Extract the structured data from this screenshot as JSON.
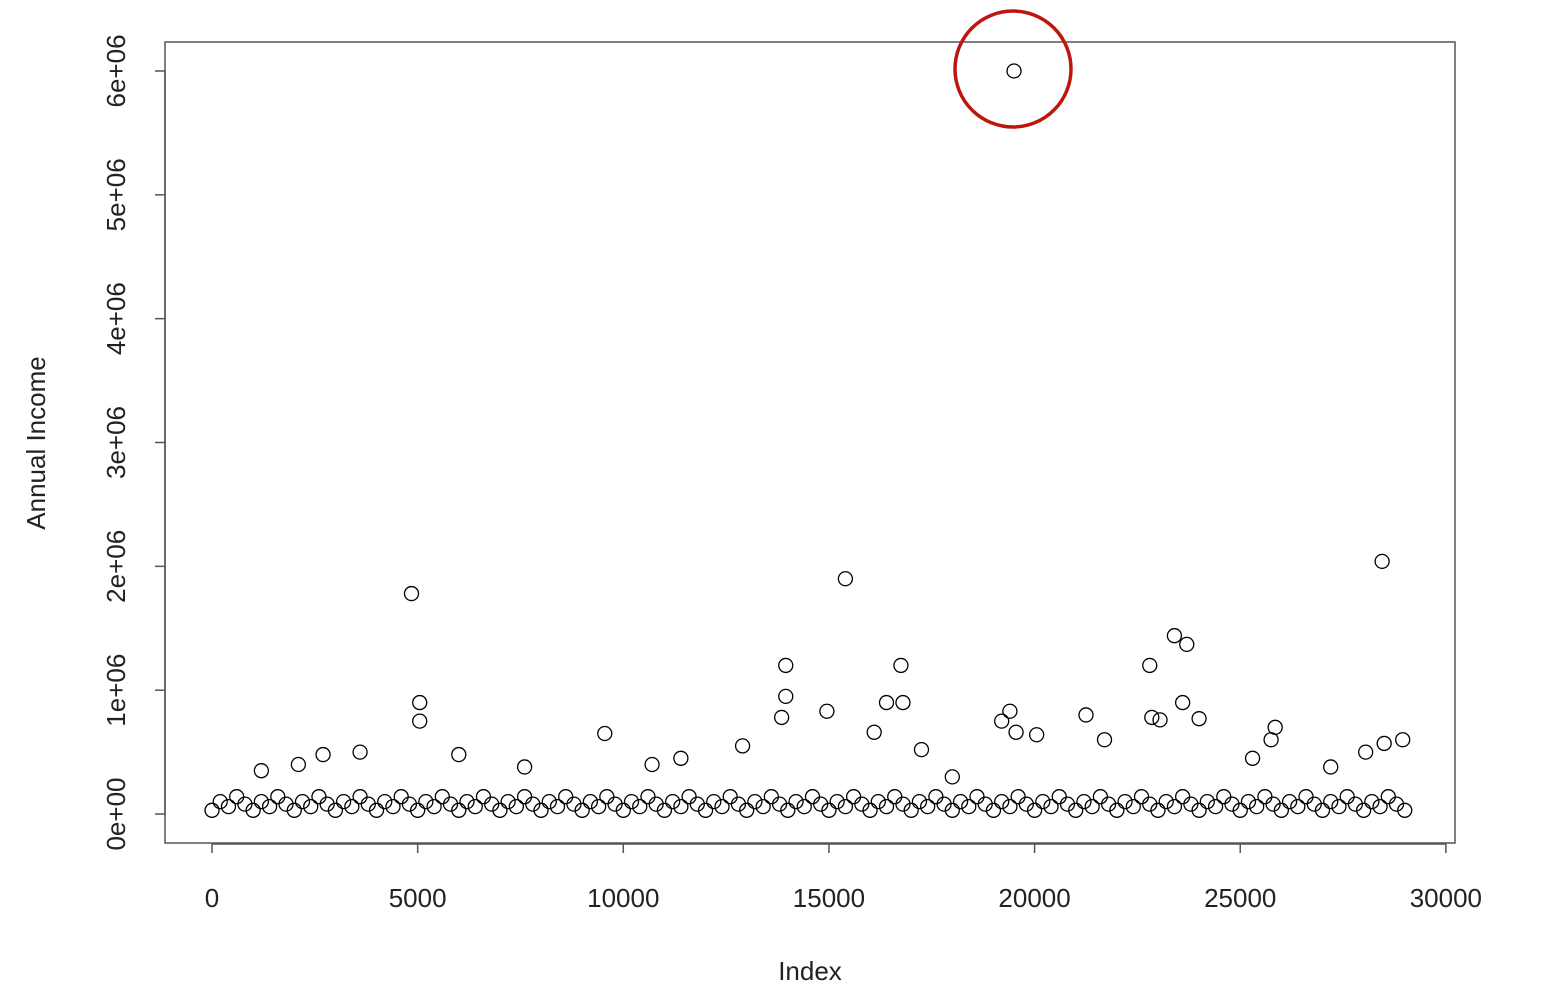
{
  "chart_data": {
    "type": "scatter",
    "x_label": "Index",
    "y_label": "Annual Income",
    "color": "#000000",
    "xlim": [
      -1143,
      30222
    ],
    "ylim": [
      -234000,
      6234000
    ],
    "xticks": [
      0,
      5000,
      10000,
      15000,
      20000,
      25000,
      30000
    ],
    "yticks": [
      {
        "value": 0,
        "label": "0e+00"
      },
      {
        "value": 1000000,
        "label": "1e+06"
      },
      {
        "value": 2000000,
        "label": "2e+06"
      },
      {
        "value": 3000000,
        "label": "3e+06"
      },
      {
        "value": 4000000,
        "label": "4e+06"
      },
      {
        "value": 5000000,
        "label": "5e+06"
      },
      {
        "value": 6000000,
        "label": "6e+06"
      }
    ],
    "x": [
      0,
      200,
      400,
      600,
      800,
      1000,
      1200,
      1400,
      1600,
      1800,
      2000,
      2200,
      2400,
      2600,
      2800,
      3000,
      3200,
      3400,
      3600,
      3800,
      4000,
      4200,
      4400,
      4600,
      4800,
      5000,
      5200,
      5400,
      5600,
      5800,
      6000,
      6200,
      6400,
      6600,
      6800,
      7000,
      7200,
      7400,
      7600,
      7800,
      8000,
      8200,
      8400,
      8600,
      8800,
      9000,
      9200,
      9400,
      9600,
      9800,
      10000,
      10200,
      10400,
      10600,
      10800,
      11000,
      11200,
      11400,
      11600,
      11800,
      12000,
      12200,
      12400,
      12600,
      12800,
      13000,
      13200,
      13400,
      13600,
      13800,
      14000,
      14200,
      14400,
      14600,
      14800,
      15000,
      15200,
      15400,
      15600,
      15800,
      16000,
      16200,
      16400,
      16600,
      16800,
      17000,
      17200,
      17400,
      17600,
      17800,
      18000,
      18200,
      18400,
      18600,
      18800,
      19000,
      19200,
      19400,
      19600,
      19800,
      20000,
      20200,
      20400,
      20600,
      20800,
      21000,
      21200,
      21400,
      21600,
      21800,
      22000,
      22200,
      22400,
      22600,
      22800,
      23000,
      23200,
      23400,
      23600,
      23800,
      24000,
      24200,
      24400,
      24600,
      24800,
      25000,
      25200,
      25400,
      25600,
      25800,
      26000,
      26200,
      26400,
      26600,
      26800,
      27000,
      27200,
      27400,
      27600,
      27800,
      28000,
      28200,
      28400,
      28600,
      28800,
      29000,
      4850,
      5050,
      5050,
      9550,
      13850,
      13950,
      13950,
      14950,
      15400,
      16100,
      16400,
      16750,
      16800,
      17250,
      19200,
      19400,
      19500,
      19550,
      20050,
      21250,
      22800,
      23400,
      23700,
      23600,
      22850,
      23050,
      24000,
      25850,
      25750,
      28450,
      28500,
      28950,
      12900,
      2700,
      3600,
      6000,
      11400,
      10700,
      21700,
      28050,
      1200,
      2100,
      7600,
      18000,
      27200,
      25300
    ],
    "values": [
      30000,
      100000,
      60000,
      140000,
      80000,
      30000,
      100000,
      60000,
      140000,
      80000,
      30000,
      100000,
      60000,
      140000,
      80000,
      30000,
      100000,
      60000,
      140000,
      80000,
      30000,
      100000,
      60000,
      140000,
      80000,
      30000,
      100000,
      60000,
      140000,
      80000,
      30000,
      100000,
      60000,
      140000,
      80000,
      30000,
      100000,
      60000,
      140000,
      80000,
      30000,
      100000,
      60000,
      140000,
      80000,
      30000,
      100000,
      60000,
      140000,
      80000,
      30000,
      100000,
      60000,
      140000,
      80000,
      30000,
      100000,
      60000,
      140000,
      80000,
      30000,
      100000,
      60000,
      140000,
      80000,
      30000,
      100000,
      60000,
      140000,
      80000,
      30000,
      100000,
      60000,
      140000,
      80000,
      30000,
      100000,
      60000,
      140000,
      80000,
      30000,
      100000,
      60000,
      140000,
      80000,
      30000,
      100000,
      60000,
      140000,
      80000,
      30000,
      100000,
      60000,
      140000,
      80000,
      30000,
      100000,
      60000,
      140000,
      80000,
      30000,
      100000,
      60000,
      140000,
      80000,
      30000,
      100000,
      60000,
      140000,
      80000,
      30000,
      100000,
      60000,
      140000,
      80000,
      30000,
      100000,
      60000,
      140000,
      80000,
      30000,
      100000,
      60000,
      140000,
      80000,
      30000,
      100000,
      60000,
      140000,
      80000,
      30000,
      100000,
      60000,
      140000,
      80000,
      30000,
      100000,
      60000,
      140000,
      80000,
      30000,
      100000,
      60000,
      140000,
      80000,
      30000,
      1780000,
      900000,
      750000,
      650000,
      780000,
      950000,
      1200000,
      830000,
      1900000,
      660000,
      900000,
      1200000,
      900000,
      520000,
      750000,
      830000,
      6000000,
      660000,
      640000,
      800000,
      1200000,
      1440000,
      1370000,
      900000,
      780000,
      760000,
      770000,
      700000,
      600000,
      2040000,
      570000,
      600000,
      550000,
      480000,
      500000,
      480000,
      450000,
      400000,
      600000,
      500000,
      350000,
      400000,
      380000,
      300000,
      380000,
      450000
    ]
  }
}
